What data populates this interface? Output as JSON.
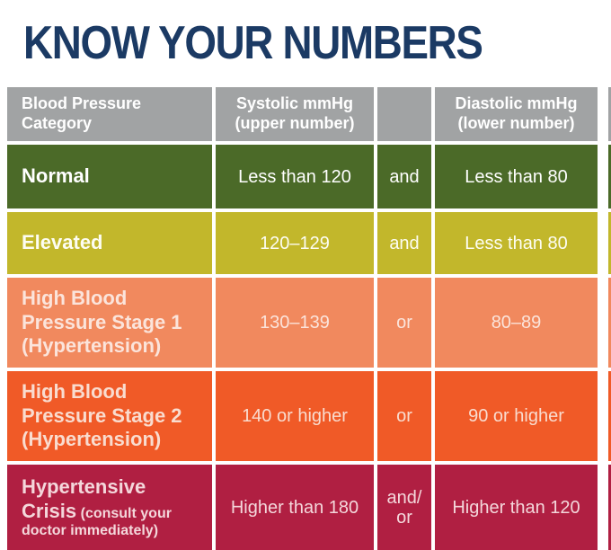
{
  "title": "KNOW YOUR NUMBERS",
  "colors": {
    "title": "#1B3A64",
    "header_bg": "#A1A3A4",
    "header_fg": "#FFFFFF",
    "row_bg": [
      "#4B6A28",
      "#C2B72B",
      "#F1895E",
      "#F05A27",
      "#B01F42"
    ],
    "row_fg": [
      "#FFFFFF",
      "#FDFDF2",
      "#FBE4DB",
      "#F9DCCF",
      "#F4D7DB"
    ]
  },
  "chart_data": {
    "type": "table",
    "title": "KNOW YOUR NUMBERS",
    "columns": [
      "Blood Pressure Category",
      "Systolic mmHg (upper number)",
      "",
      "Diastolic mmHg (lower number)"
    ],
    "rows": [
      [
        "Normal",
        "Less than 120",
        "and",
        "Less than 80"
      ],
      [
        "Elevated",
        "120–129",
        "and",
        "Less than 80"
      ],
      [
        "High Blood Pressure Stage 1 (Hypertension)",
        "130–139",
        "or",
        "80–89"
      ],
      [
        "High Blood Pressure Stage 2 (Hypertension)",
        "140 or higher",
        "or",
        "90 or higher"
      ],
      [
        "Hypertensive Crisis (consult your doctor immediately)",
        "Higher than 180",
        "and/or",
        "Higher than 120"
      ]
    ]
  },
  "display": {
    "crisis_category_main": "Hypertensive Crisis",
    "crisis_category_note": "(consult your doctor immediately)",
    "crisis_connector": "and/\nor"
  }
}
